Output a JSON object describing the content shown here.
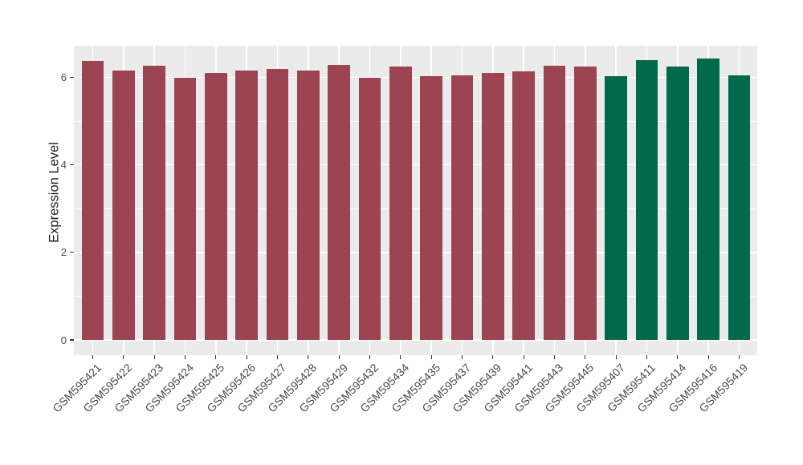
{
  "chart_data": {
    "type": "bar",
    "title": "",
    "xlabel": "",
    "ylabel": "Expression Level",
    "categories": [
      "GSM595421",
      "GSM595422",
      "GSM595423",
      "GSM595424",
      "GSM595425",
      "GSM595426",
      "GSM595427",
      "GSM595428",
      "GSM595429",
      "GSM595432",
      "GSM595434",
      "GSM595435",
      "GSM595437",
      "GSM595439",
      "GSM595441",
      "GSM595443",
      "GSM595445",
      "GSM595407",
      "GSM595411",
      "GSM595414",
      "GSM595416",
      "GSM595419"
    ],
    "values": [
      6.38,
      6.16,
      6.26,
      5.99,
      6.09,
      6.15,
      6.19,
      6.16,
      6.28,
      5.98,
      6.24,
      6.02,
      6.05,
      6.1,
      6.14,
      6.26,
      6.25,
      6.02,
      6.4,
      6.24,
      6.42,
      6.05
    ],
    "group_index": [
      0,
      0,
      0,
      0,
      0,
      0,
      0,
      0,
      0,
      0,
      0,
      0,
      0,
      0,
      0,
      0,
      0,
      1,
      1,
      1,
      1,
      1
    ],
    "palette": [
      "#9C4452",
      "#016A4A"
    ],
    "ylim": [
      -0.35,
      6.75
    ],
    "yticks_major": [
      0,
      2,
      4,
      6
    ],
    "yticks_minor": [
      1,
      3,
      5
    ],
    "grid": "on",
    "legend": "none",
    "panel_bg": "#EBEBEB",
    "grid_color": "#FFFFFF",
    "tick_color": "#333333",
    "tick_label_color": "#4a4a4a"
  }
}
